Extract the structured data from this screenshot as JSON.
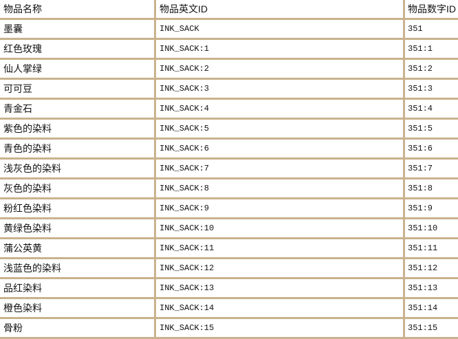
{
  "headers": [
    "物品名称",
    "物品英文ID",
    "物品数字ID"
  ],
  "rows": [
    [
      "墨囊",
      "INK_SACK",
      "351"
    ],
    [
      "红色玫瑰",
      "INK_SACK:1",
      "351:1"
    ],
    [
      "仙人掌绿",
      "INK_SACK:2",
      "351:2"
    ],
    [
      "可可豆",
      "INK_SACK:3",
      "351:3"
    ],
    [
      "青金石",
      "INK_SACK:4",
      "351:4"
    ],
    [
      "紫色的染料",
      "INK_SACK:5",
      "351:5"
    ],
    [
      "青色的染料",
      "INK_SACK:6",
      "351:6"
    ],
    [
      "浅灰色的染料",
      "INK_SACK:7",
      "351:7"
    ],
    [
      "灰色的染料",
      "INK_SACK:8",
      "351:8"
    ],
    [
      "粉红色染料",
      "INK_SACK:9",
      "351:9"
    ],
    [
      "黄绿色染料",
      "INK_SACK:10",
      "351:10"
    ],
    [
      "蒲公英黄",
      "INK_SACK:11",
      "351:11"
    ],
    [
      "浅蓝色的染料",
      "INK_SACK:12",
      "351:12"
    ],
    [
      "品红染料",
      "INK_SACK:13",
      "351:13"
    ],
    [
      "橙色染料",
      "INK_SACK:14",
      "351:14"
    ],
    [
      "骨粉",
      "INK_SACK:15",
      "351:15"
    ]
  ],
  "colors": {
    "border": "#c9b28d",
    "cell": "#ffffff"
  }
}
